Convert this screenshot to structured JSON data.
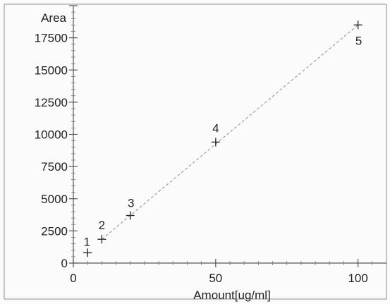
{
  "chart_data": {
    "type": "scatter",
    "xlabel": "Amount[ug/ml]",
    "ylabel": "Area",
    "xlim": [
      0,
      110
    ],
    "ylim": [
      0,
      20000
    ],
    "xticks": [
      0,
      50,
      100
    ],
    "yticks": [
      0,
      2500,
      5000,
      7500,
      10000,
      12500,
      15000,
      17500
    ],
    "series": [
      {
        "points": [
          {
            "label": "1",
            "x": 5,
            "y": 800
          },
          {
            "label": "2",
            "x": 10,
            "y": 1850
          },
          {
            "label": "3",
            "x": 20,
            "y": 3700
          },
          {
            "label": "4",
            "x": 50,
            "y": 9400
          },
          {
            "label": "5",
            "x": 100,
            "y": 18500
          }
        ]
      }
    ],
    "fit_line": {
      "x": [
        10,
        100
      ],
      "y": [
        1850,
        18500
      ]
    },
    "grid": false,
    "colors": {
      "background": "#fbfbfb",
      "axis": "#555555",
      "marker": "#2b2b2b",
      "fit_line": "#8f8f8f"
    }
  }
}
